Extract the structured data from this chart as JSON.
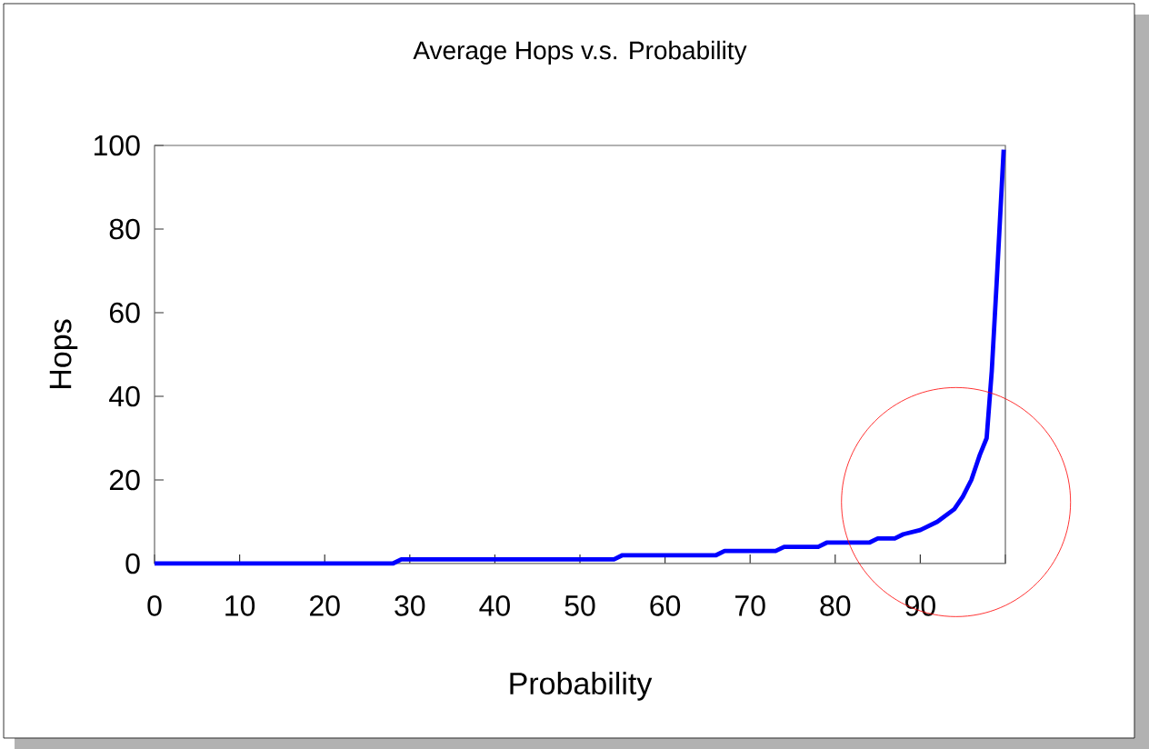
{
  "chart_data": {
    "type": "line",
    "title": "Average Hops v.s. Probability",
    "xlabel": "Probability",
    "ylabel": "Hops",
    "series": [
      {
        "color": "#0000ff",
        "x": [
          0,
          28,
          29,
          54,
          55,
          66,
          67,
          73,
          74,
          78,
          79,
          84,
          85,
          87,
          88,
          90,
          92,
          94,
          95,
          96,
          97,
          97.8,
          98.4,
          99,
          99.8
        ],
        "values": [
          0,
          0,
          1,
          1,
          2,
          2,
          3,
          3,
          4,
          4,
          5,
          5,
          6,
          6,
          7,
          8,
          10,
          13,
          16,
          20,
          26,
          30,
          46,
          68,
          99
        ]
      }
    ],
    "xlim": [
      0,
      100
    ],
    "ylim": [
      0,
      100
    ],
    "xticks": [
      0,
      10,
      20,
      30,
      40,
      50,
      60,
      70,
      80,
      90,
      {
        "value": 100,
        "label": null
      }
    ],
    "yticks": [
      0,
      20,
      40,
      60,
      80,
      100
    ],
    "marker": "none",
    "line_style": "solid"
  }
}
